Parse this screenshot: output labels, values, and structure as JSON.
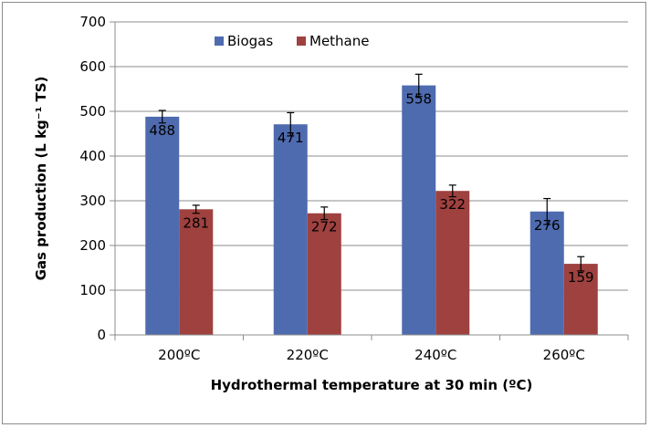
{
  "chart_data": {
    "type": "bar",
    "categories": [
      "200ºC",
      "220ºC",
      "240ºC",
      "260ºC"
    ],
    "series": [
      {
        "name": "Biogas",
        "color": "#4f6bb0",
        "values": [
          488,
          471,
          558,
          276
        ],
        "errors": [
          14,
          26,
          25,
          29
        ],
        "labels": [
          "488",
          "471",
          "558",
          "276"
        ]
      },
      {
        "name": "Methane",
        "color": "#9e413f",
        "values": [
          281,
          272,
          322,
          159
        ],
        "errors": [
          9,
          14,
          13,
          16
        ],
        "labels": [
          "281",
          "272",
          "322",
          "159"
        ]
      }
    ],
    "xlabel": "Hydrothermal temperature at 30 min (ºC)",
    "ylabel": "Gas production (L kg⁻¹ TS)",
    "ylim": [
      0,
      700
    ],
    "yticks": [
      "0",
      "100",
      "200",
      "300",
      "400",
      "500",
      "600",
      "700"
    ],
    "grid": true,
    "legend_position": "top-left"
  }
}
